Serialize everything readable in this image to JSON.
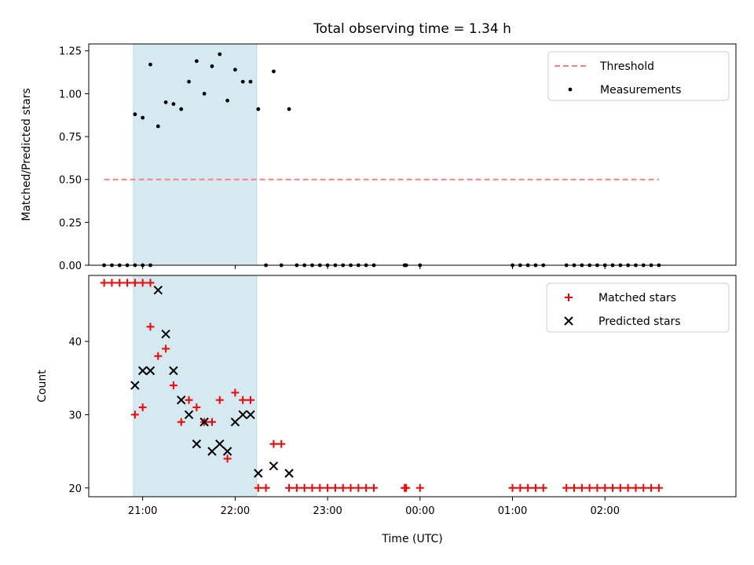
{
  "chart_data": [
    {
      "type": "scatter",
      "title": "Total observing time = 1.34 h",
      "xlabel": "",
      "ylabel": "Matched/Predicted stars",
      "xlim": [
        "20:25",
        "03:25"
      ],
      "ylim": [
        0.0,
        1.29
      ],
      "yticks": [
        "0.00",
        "0.25",
        "0.50",
        "0.75",
        "1.00",
        "1.25"
      ],
      "ytick_values": [
        0.0,
        0.25,
        0.5,
        0.75,
        1.0,
        1.25
      ],
      "xticks": [
        "21:00",
        "22:00",
        "23:00",
        "00:00",
        "01:00",
        "02:00"
      ],
      "xtick_labels_shown": false,
      "shaded_span": [
        "20:54",
        "22:14"
      ],
      "shaded_color": "#d4eaf0",
      "legend_position": "upper right",
      "series": [
        {
          "name": "Threshold",
          "style": "dashed-line",
          "color": "#ff7f7f",
          "x": [
            "20:35",
            "02:35"
          ],
          "y": [
            0.5,
            0.5
          ]
        },
        {
          "name": "Measurements",
          "style": "dot",
          "color": "#000000",
          "x": [
            "20:35",
            "20:40",
            "20:45",
            "20:50",
            "20:55",
            "21:00",
            "21:05",
            "20:55",
            "21:00",
            "21:05",
            "21:10",
            "21:15",
            "21:20",
            "21:25",
            "21:30",
            "21:35",
            "21:40",
            "21:45",
            "21:50",
            "21:55",
            "22:00",
            "22:05",
            "22:10",
            "22:15",
            "22:20",
            "22:25",
            "22:30",
            "22:35",
            "22:40",
            "22:45",
            "22:50",
            "22:55",
            "23:00",
            "23:05",
            "23:10",
            "23:15",
            "23:20",
            "23:25",
            "23:30",
            "23:50",
            "23:51",
            "00:00",
            "01:00",
            "01:05",
            "01:10",
            "01:15",
            "01:20",
            "01:35",
            "01:40",
            "01:45",
            "01:50",
            "01:55",
            "02:00",
            "02:05",
            "02:10",
            "02:15",
            "02:20",
            "02:25",
            "02:30",
            "02:35"
          ],
          "y": [
            0,
            0,
            0,
            0,
            0,
            0,
            0,
            0.88,
            0.86,
            1.17,
            0.81,
            0.95,
            0.94,
            0.91,
            1.07,
            1.19,
            1.0,
            1.16,
            1.23,
            0.96,
            1.14,
            1.07,
            1.07,
            0.91,
            0,
            1.13,
            0,
            0.91,
            0,
            0,
            0,
            0,
            0,
            0,
            0,
            0,
            0,
            0,
            0,
            0,
            0,
            0,
            0,
            0,
            0,
            0,
            0,
            0,
            0,
            0,
            0,
            0,
            0,
            0,
            0,
            0,
            0,
            0,
            0,
            0
          ]
        }
      ]
    },
    {
      "type": "scatter",
      "title": "",
      "xlabel": "Time (UTC)",
      "ylabel": "Count",
      "xlim": [
        "20:25",
        "03:25"
      ],
      "ylim": [
        18.8,
        49.0
      ],
      "yticks": [
        "20",
        "30",
        "40"
      ],
      "ytick_values": [
        20,
        30,
        40
      ],
      "xticks": [
        "21:00",
        "22:00",
        "23:00",
        "00:00",
        "01:00",
        "02:00"
      ],
      "shaded_span": [
        "20:54",
        "22:14"
      ],
      "shaded_color": "#d4eaf0",
      "legend_position": "upper right",
      "series": [
        {
          "name": "Matched stars",
          "style": "plus",
          "color": "#ff0000",
          "x": [
            "20:35",
            "20:40",
            "20:45",
            "20:50",
            "20:55",
            "21:00",
            "21:05",
            "20:55",
            "21:00",
            "21:05",
            "21:10",
            "21:15",
            "21:20",
            "21:25",
            "21:30",
            "21:35",
            "21:40",
            "21:45",
            "21:50",
            "21:55",
            "22:00",
            "22:05",
            "22:10",
            "22:15",
            "22:20",
            "22:25",
            "22:30",
            "22:35",
            "22:40",
            "22:45",
            "22:50",
            "22:55",
            "23:00",
            "23:05",
            "23:10",
            "23:15",
            "23:20",
            "23:25",
            "23:30",
            "23:50",
            "23:51",
            "00:00",
            "01:00",
            "01:05",
            "01:10",
            "01:15",
            "01:20",
            "01:35",
            "01:40",
            "01:45",
            "01:50",
            "01:55",
            "02:00",
            "02:05",
            "02:10",
            "02:15",
            "02:20",
            "02:25",
            "02:30",
            "02:35"
          ],
          "y": [
            48,
            48,
            48,
            48,
            48,
            48,
            48,
            30,
            31,
            42,
            38,
            39,
            34,
            29,
            32,
            31,
            29,
            29,
            32,
            24,
            33,
            32,
            32,
            20,
            20,
            26,
            26,
            20,
            20,
            20,
            20,
            20,
            20,
            20,
            20,
            20,
            20,
            20,
            20,
            20,
            20,
            20,
            20,
            20,
            20,
            20,
            20,
            20,
            20,
            20,
            20,
            20,
            20,
            20,
            20,
            20,
            20,
            20,
            20,
            20
          ]
        },
        {
          "name": "Predicted stars",
          "style": "x",
          "color": "#000000",
          "x": [
            "20:55",
            "21:00",
            "21:05",
            "21:10",
            "21:15",
            "21:20",
            "21:25",
            "21:30",
            "21:35",
            "21:40",
            "21:45",
            "21:50",
            "21:55",
            "22:00",
            "22:05",
            "22:10",
            "22:15",
            "22:25",
            "22:35"
          ],
          "y": [
            34,
            36,
            36,
            47,
            41,
            36,
            32,
            30,
            26,
            29,
            25,
            26,
            25,
            29,
            30,
            30,
            22,
            23,
            22
          ]
        }
      ]
    }
  ]
}
